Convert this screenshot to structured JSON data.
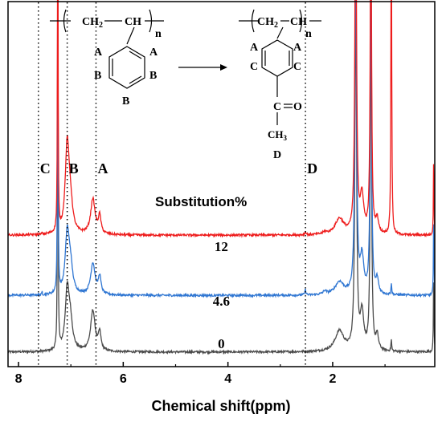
{
  "chart_data": {
    "type": "line",
    "xlabel": "Chemical shift(ppm)",
    "xlim": [
      8.2,
      0.05
    ],
    "x_ticks": [
      "8",
      "6",
      "4",
      "2"
    ],
    "x_reversed": true,
    "legend_title": "Substitution%",
    "markers": [
      {
        "label": "C",
        "x": 7.62
      },
      {
        "label": "B",
        "x": 7.07
      },
      {
        "label": "A",
        "x": 6.52
      },
      {
        "label": "D",
        "x": 2.52
      }
    ],
    "series": [
      {
        "name": "0",
        "color": "#4a4a4a",
        "baseline": 0.04
      },
      {
        "name": "4.6",
        "color": "#2f76d2",
        "baseline": 0.195
      },
      {
        "name": "12",
        "color": "#ee1c1c",
        "baseline": 0.36
      }
    ],
    "series_label_x": 4.25,
    "structure": {
      "left": {
        "ch2": "CH",
        "ch2_sub": "2",
        "ch": "CH",
        "n": "n",
        "ring_labels": [
          "A",
          "A",
          "B",
          "B",
          "B"
        ]
      },
      "right": {
        "ch2": "CH",
        "ch2_sub": "2",
        "ch": "CH",
        "n": "n",
        "ring_labels": [
          "A",
          "A",
          "C",
          "C"
        ],
        "carbonyl_c": "C",
        "oxygen": "O",
        "methyl": "CH",
        "methyl_sub": "3",
        "d_label": "D"
      }
    }
  }
}
